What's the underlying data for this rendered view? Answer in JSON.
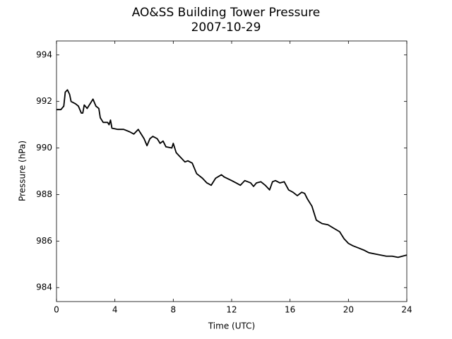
{
  "chart_data": {
    "type": "line",
    "title": "AO&SS Building Tower Pressure",
    "subtitle": "2007-10-29",
    "x_label": "Time (UTC)",
    "y_label": "Pressure (hPa)",
    "color": "#000000",
    "xlim": [
      0,
      24
    ],
    "xticks": [
      0,
      4,
      8,
      12,
      16,
      20,
      24
    ],
    "ylim": [
      983.4,
      994.6
    ],
    "yticks": [
      984,
      986,
      988,
      990,
      992,
      994
    ],
    "grid": false,
    "x": [
      0,
      0.3,
      0.5,
      0.6,
      0.75,
      0.9,
      1.0,
      1.3,
      1.5,
      1.7,
      1.8,
      1.9,
      2.1,
      2.3,
      2.5,
      2.7,
      2.9,
      3.0,
      3.2,
      3.5,
      3.6,
      3.7,
      3.8,
      4.2,
      4.6,
      5.0,
      5.3,
      5.6,
      5.8,
      6.0,
      6.2,
      6.4,
      6.6,
      6.9,
      7.1,
      7.3,
      7.5,
      7.9,
      8.0,
      8.2,
      8.5,
      8.8,
      9.0,
      9.3,
      9.6,
      10.0,
      10.3,
      10.6,
      10.9,
      11.3,
      11.5,
      12.0,
      12.3,
      12.6,
      12.9,
      13.3,
      13.5,
      13.7,
      14.0,
      14.3,
      14.6,
      14.8,
      15.0,
      15.3,
      15.6,
      15.9,
      16.2,
      16.5,
      16.8,
      17.0,
      17.2,
      17.5,
      17.8,
      18.2,
      18.6,
      19.0,
      19.4,
      19.7,
      20.0,
      20.3,
      20.7,
      21.1,
      21.4,
      21.8,
      22.2,
      22.6,
      23.0,
      23.4,
      23.7,
      24.0
    ],
    "values": [
      991.65,
      991.65,
      991.8,
      992.4,
      992.5,
      992.3,
      992.0,
      991.9,
      991.8,
      991.5,
      991.5,
      991.85,
      991.7,
      991.9,
      992.1,
      991.8,
      991.7,
      991.3,
      991.1,
      991.1,
      991.0,
      991.2,
      990.85,
      990.8,
      990.8,
      990.7,
      990.6,
      990.8,
      990.6,
      990.4,
      990.1,
      990.4,
      990.5,
      990.4,
      990.2,
      990.3,
      990.05,
      990.0,
      990.2,
      989.8,
      989.6,
      989.4,
      989.45,
      989.35,
      988.9,
      988.7,
      988.5,
      988.4,
      988.7,
      988.85,
      988.75,
      988.6,
      988.5,
      988.4,
      988.6,
      988.5,
      988.35,
      988.5,
      988.55,
      988.4,
      988.2,
      988.55,
      988.6,
      988.5,
      988.55,
      988.2,
      988.1,
      987.95,
      988.1,
      988.05,
      987.8,
      987.5,
      986.9,
      986.75,
      986.7,
      986.55,
      986.4,
      986.1,
      985.9,
      985.8,
      985.7,
      985.6,
      985.5,
      985.45,
      985.4,
      985.35,
      985.35,
      985.3,
      985.35,
      985.4
    ]
  }
}
